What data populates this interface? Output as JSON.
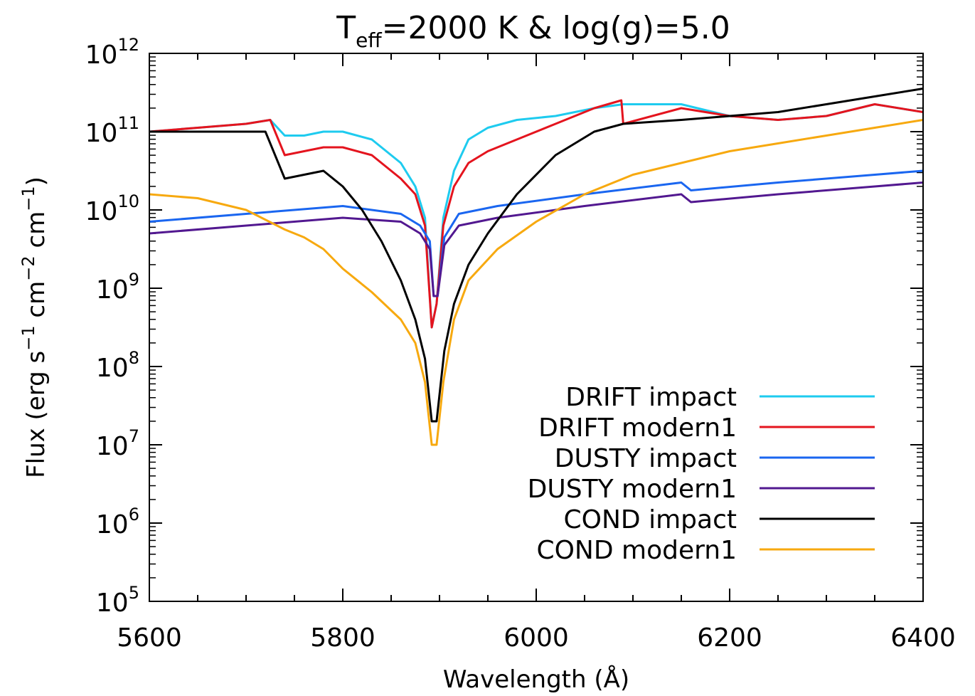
{
  "chart_data": {
    "type": "line",
    "title": {
      "main": "T",
      "sub": "eff",
      "rest": "=2000 K & log(g)=5.0"
    },
    "xlabel": "Wavelength (Å)",
    "ylabel": {
      "a": "Flux (erg s",
      "b": "−1",
      "c": " cm",
      "d": "−2",
      "e": " cm",
      "f": "−1",
      "g": ")"
    },
    "xlim": [
      5600,
      6400
    ],
    "ylim_log10": [
      5,
      12
    ],
    "y_scale": "log",
    "x_ticks": [
      {
        "value": 5600,
        "label": "5600"
      },
      {
        "value": 5800,
        "label": "5800"
      },
      {
        "value": 6000,
        "label": "6000"
      },
      {
        "value": 6200,
        "label": "6200"
      },
      {
        "value": 6400,
        "label": "6400"
      }
    ],
    "y_ticks": [
      {
        "exp": 5,
        "base": "10",
        "sup": "5"
      },
      {
        "exp": 6,
        "base": "10",
        "sup": "6"
      },
      {
        "exp": 7,
        "base": "10",
        "sup": "7"
      },
      {
        "exp": 8,
        "base": "10",
        "sup": "8"
      },
      {
        "exp": 9,
        "base": "10",
        "sup": "9"
      },
      {
        "exp": 10,
        "base": "10",
        "sup": "10"
      },
      {
        "exp": 11,
        "base": "10",
        "sup": "11"
      },
      {
        "exp": 12,
        "base": "10",
        "sup": "12"
      }
    ],
    "legend_position": "bottom-right",
    "series": [
      {
        "name": "DRIFT impact",
        "color": "#1ecbef",
        "x": [
          5600,
          5650,
          5700,
          5725,
          5740,
          5760,
          5780,
          5800,
          5830,
          5860,
          5875,
          5885,
          5892,
          5897,
          5904,
          5915,
          5930,
          5950,
          5980,
          6020,
          6060,
          6090,
          6150,
          6200,
          6250,
          6300,
          6350,
          6400
        ],
        "log_flux": [
          11.0,
          11.05,
          11.1,
          11.15,
          10.95,
          10.95,
          11.0,
          11.0,
          10.9,
          10.6,
          10.3,
          9.9,
          8.5,
          8.8,
          9.9,
          10.5,
          10.9,
          11.05,
          11.15,
          11.2,
          11.3,
          11.35,
          11.35,
          11.2,
          11.15,
          11.2,
          11.35,
          11.25
        ]
      },
      {
        "name": "DRIFT modern1",
        "color": "#e4141e",
        "x": [
          5600,
          5650,
          5700,
          5725,
          5740,
          5760,
          5780,
          5800,
          5830,
          5860,
          5875,
          5885,
          5892,
          5897,
          5904,
          5915,
          5930,
          5950,
          5980,
          6020,
          6060,
          6088,
          6090,
          6150,
          6200,
          6250,
          6300,
          6350,
          6400
        ],
        "log_flux": [
          11.0,
          11.05,
          11.1,
          11.15,
          10.7,
          10.75,
          10.8,
          10.8,
          10.7,
          10.4,
          10.2,
          9.8,
          8.5,
          8.8,
          9.8,
          10.3,
          10.6,
          10.75,
          10.9,
          11.1,
          11.3,
          11.4,
          11.1,
          11.3,
          11.2,
          11.15,
          11.2,
          11.35,
          11.25
        ]
      },
      {
        "name": "DUSTY impact",
        "color": "#1a66f0",
        "x": [
          5600,
          5700,
          5800,
          5860,
          5880,
          5890,
          5894,
          5898,
          5905,
          5920,
          5960,
          6050,
          6150,
          6160,
          6250,
          6350,
          6400
        ],
        "log_flux": [
          9.85,
          9.95,
          10.05,
          9.95,
          9.8,
          9.6,
          8.9,
          8.9,
          9.65,
          9.95,
          10.05,
          10.2,
          10.35,
          10.25,
          10.35,
          10.45,
          10.5
        ]
      },
      {
        "name": "DUSTY modern1",
        "color": "#521890",
        "x": [
          5600,
          5700,
          5800,
          5860,
          5880,
          5890,
          5894,
          5898,
          5905,
          5920,
          5960,
          6050,
          6150,
          6160,
          6250,
          6350,
          6400
        ],
        "log_flux": [
          9.7,
          9.8,
          9.9,
          9.85,
          9.7,
          9.5,
          8.9,
          8.9,
          9.55,
          9.8,
          9.9,
          10.05,
          10.2,
          10.1,
          10.2,
          10.3,
          10.35
        ]
      },
      {
        "name": "COND impact",
        "color": "#000000",
        "x": [
          5600,
          5650,
          5700,
          5720,
          5740,
          5760,
          5780,
          5800,
          5820,
          5840,
          5860,
          5875,
          5885,
          5892,
          5897,
          5905,
          5915,
          5930,
          5950,
          5980,
          6020,
          6060,
          6090,
          6150,
          6200,
          6250,
          6300,
          6350,
          6400
        ],
        "log_flux": [
          11.0,
          11.0,
          11.0,
          11.0,
          10.4,
          10.45,
          10.5,
          10.3,
          10.0,
          9.6,
          9.1,
          8.6,
          8.1,
          7.3,
          7.3,
          8.2,
          8.8,
          9.3,
          9.7,
          10.2,
          10.7,
          11.0,
          11.1,
          11.15,
          11.2,
          11.25,
          11.35,
          11.45,
          11.55
        ]
      },
      {
        "name": "COND modern1",
        "color": "#f7a90f",
        "x": [
          5600,
          5650,
          5700,
          5740,
          5760,
          5780,
          5800,
          5830,
          5860,
          5875,
          5885,
          5892,
          5897,
          5904,
          5915,
          5930,
          5960,
          6000,
          6050,
          6100,
          6150,
          6200,
          6250,
          6300,
          6350,
          6400
        ],
        "log_flux": [
          10.2,
          10.15,
          10.0,
          9.75,
          9.65,
          9.5,
          9.25,
          8.95,
          8.6,
          8.3,
          7.8,
          7.0,
          7.0,
          7.8,
          8.6,
          9.1,
          9.5,
          9.85,
          10.2,
          10.45,
          10.6,
          10.75,
          10.85,
          10.95,
          11.05,
          11.15
        ]
      }
    ]
  }
}
